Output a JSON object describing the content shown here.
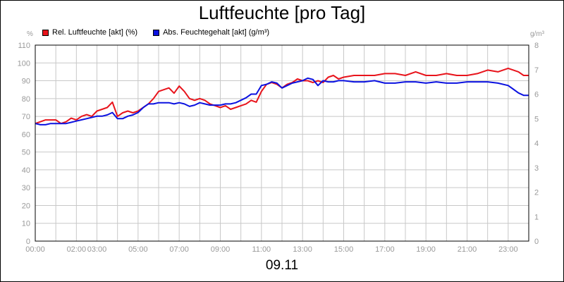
{
  "title": "Luftfeuchte [pro Tag]",
  "date_label": "09.11",
  "colors": {
    "rel": "#e8141c",
    "abs": "#0b12e0",
    "grid": "#c8c8c8",
    "tick_label": "#999999"
  },
  "chart_data": {
    "type": "line",
    "title": "Luftfeuchte [pro Tag]",
    "xlabel": "09.11",
    "x_ticks": [
      "00:00",
      "02:00",
      "03:00",
      "05:00",
      "07:00",
      "09:00",
      "11:00",
      "13:00",
      "15:00",
      "17:00",
      "19:00",
      "21:00",
      "23:00"
    ],
    "x_tick_hours": [
      0,
      2,
      3,
      5,
      7,
      9,
      11,
      13,
      15,
      17,
      19,
      21,
      23
    ],
    "xlim_hours": [
      0,
      24
    ],
    "y_left": {
      "unit": "%",
      "lim": [
        0,
        110
      ],
      "ticks": [
        0,
        10,
        20,
        30,
        40,
        50,
        60,
        70,
        80,
        90,
        100,
        110
      ]
    },
    "y_right": {
      "unit": "g/m³",
      "lim": [
        0,
        8
      ],
      "ticks": [
        0,
        1,
        2,
        3,
        4,
        5,
        6,
        7,
        8
      ]
    },
    "grid": true,
    "legend_position": "top-left",
    "series": [
      {
        "name": "Rel. Luftfeuchte [akt] (%)",
        "axis": "left",
        "hours": [
          0,
          0.25,
          0.5,
          0.75,
          1,
          1.25,
          1.5,
          1.75,
          2,
          2.25,
          2.5,
          2.75,
          3,
          3.25,
          3.5,
          3.75,
          4,
          4.25,
          4.5,
          4.75,
          5,
          5.25,
          5.5,
          5.75,
          6,
          6.25,
          6.5,
          6.75,
          7,
          7.25,
          7.5,
          7.75,
          8,
          8.25,
          8.5,
          8.75,
          9,
          9.25,
          9.5,
          9.75,
          10,
          10.25,
          10.5,
          10.75,
          11,
          11.25,
          11.5,
          11.75,
          12,
          12.25,
          12.5,
          12.75,
          13,
          13.25,
          13.5,
          13.75,
          14,
          14.25,
          14.5,
          14.75,
          15,
          15.5,
          16,
          16.5,
          17,
          17.5,
          18,
          18.5,
          19,
          19.5,
          20,
          20.5,
          21,
          21.5,
          22,
          22.5,
          23,
          23.25,
          23.5,
          23.75,
          24
        ],
        "values": [
          66,
          67,
          68,
          68,
          68,
          66,
          67,
          69,
          68,
          70,
          71,
          70,
          73,
          74,
          75,
          78,
          70,
          72,
          73,
          72,
          73,
          75,
          77,
          80,
          84,
          85,
          86,
          83,
          87,
          84,
          80,
          79,
          80,
          79,
          77,
          76,
          75,
          76,
          74,
          75,
          76,
          77,
          79,
          78,
          84,
          88,
          89,
          88,
          86,
          88,
          89,
          91,
          90,
          90,
          89,
          90,
          89,
          92,
          93,
          91,
          92,
          93,
          93,
          93,
          94,
          94,
          93,
          95,
          93,
          93,
          94,
          93,
          93,
          94,
          96,
          95,
          97,
          96,
          95,
          93,
          93
        ]
      },
      {
        "name": "Abs. Feuchtegehalt [akt] (g/m³)",
        "axis": "right",
        "hours": [
          0,
          0.25,
          0.5,
          0.75,
          1,
          1.25,
          1.5,
          1.75,
          2,
          2.25,
          2.5,
          2.75,
          3,
          3.25,
          3.5,
          3.75,
          4,
          4.25,
          4.5,
          4.75,
          5,
          5.25,
          5.5,
          5.75,
          6,
          6.25,
          6.5,
          6.75,
          7,
          7.25,
          7.5,
          7.75,
          8,
          8.25,
          8.5,
          8.75,
          9,
          9.25,
          9.5,
          9.75,
          10,
          10.25,
          10.5,
          10.75,
          11,
          11.25,
          11.5,
          11.75,
          12,
          12.25,
          12.5,
          12.75,
          13,
          13.25,
          13.5,
          13.75,
          14,
          14.25,
          14.5,
          14.75,
          15,
          15.5,
          16,
          16.5,
          17,
          17.5,
          18,
          18.5,
          19,
          19.5,
          20,
          20.5,
          21,
          21.5,
          22,
          22.5,
          23,
          23.25,
          23.5,
          23.75,
          24
        ],
        "values": [
          4.8,
          4.75,
          4.75,
          4.8,
          4.8,
          4.8,
          4.8,
          4.85,
          4.9,
          4.95,
          5.0,
          5.05,
          5.1,
          5.1,
          5.15,
          5.25,
          5.0,
          5.0,
          5.1,
          5.15,
          5.25,
          5.45,
          5.6,
          5.6,
          5.65,
          5.65,
          5.65,
          5.6,
          5.65,
          5.6,
          5.5,
          5.55,
          5.65,
          5.6,
          5.55,
          5.55,
          5.55,
          5.6,
          5.6,
          5.65,
          5.75,
          5.85,
          6.0,
          6.0,
          6.35,
          6.4,
          6.5,
          6.45,
          6.25,
          6.35,
          6.45,
          6.5,
          6.55,
          6.65,
          6.6,
          6.35,
          6.55,
          6.5,
          6.5,
          6.55,
          6.55,
          6.5,
          6.5,
          6.55,
          6.45,
          6.45,
          6.5,
          6.5,
          6.45,
          6.5,
          6.45,
          6.45,
          6.5,
          6.5,
          6.5,
          6.45,
          6.35,
          6.2,
          6.05,
          5.95,
          5.95
        ]
      }
    ]
  }
}
